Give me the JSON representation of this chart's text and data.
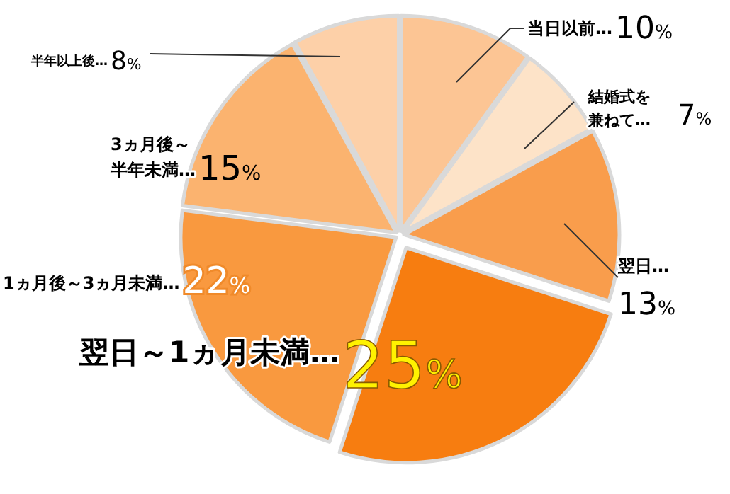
{
  "chart_data": {
    "type": "pie",
    "categories": [
      "当日以前…",
      "結婚式を兼ねて…",
      "翌日…",
      "翌日～1ヵ月未満…",
      "1ヵ月後～3ヵ月未満…",
      "3ヵ月後～半年未満…",
      "半年以上後…"
    ],
    "values": [
      10,
      7,
      13,
      25,
      22,
      15,
      8
    ],
    "value_labels": [
      "10%",
      "7%",
      "13%",
      "25%",
      "22%",
      "15%",
      "8%"
    ],
    "colors": [
      "#fcc594",
      "#fde3c8",
      "#f99d4c",
      "#f77d10",
      "#f9993f",
      "#fbb36f",
      "#fdd0a8"
    ]
  }
}
